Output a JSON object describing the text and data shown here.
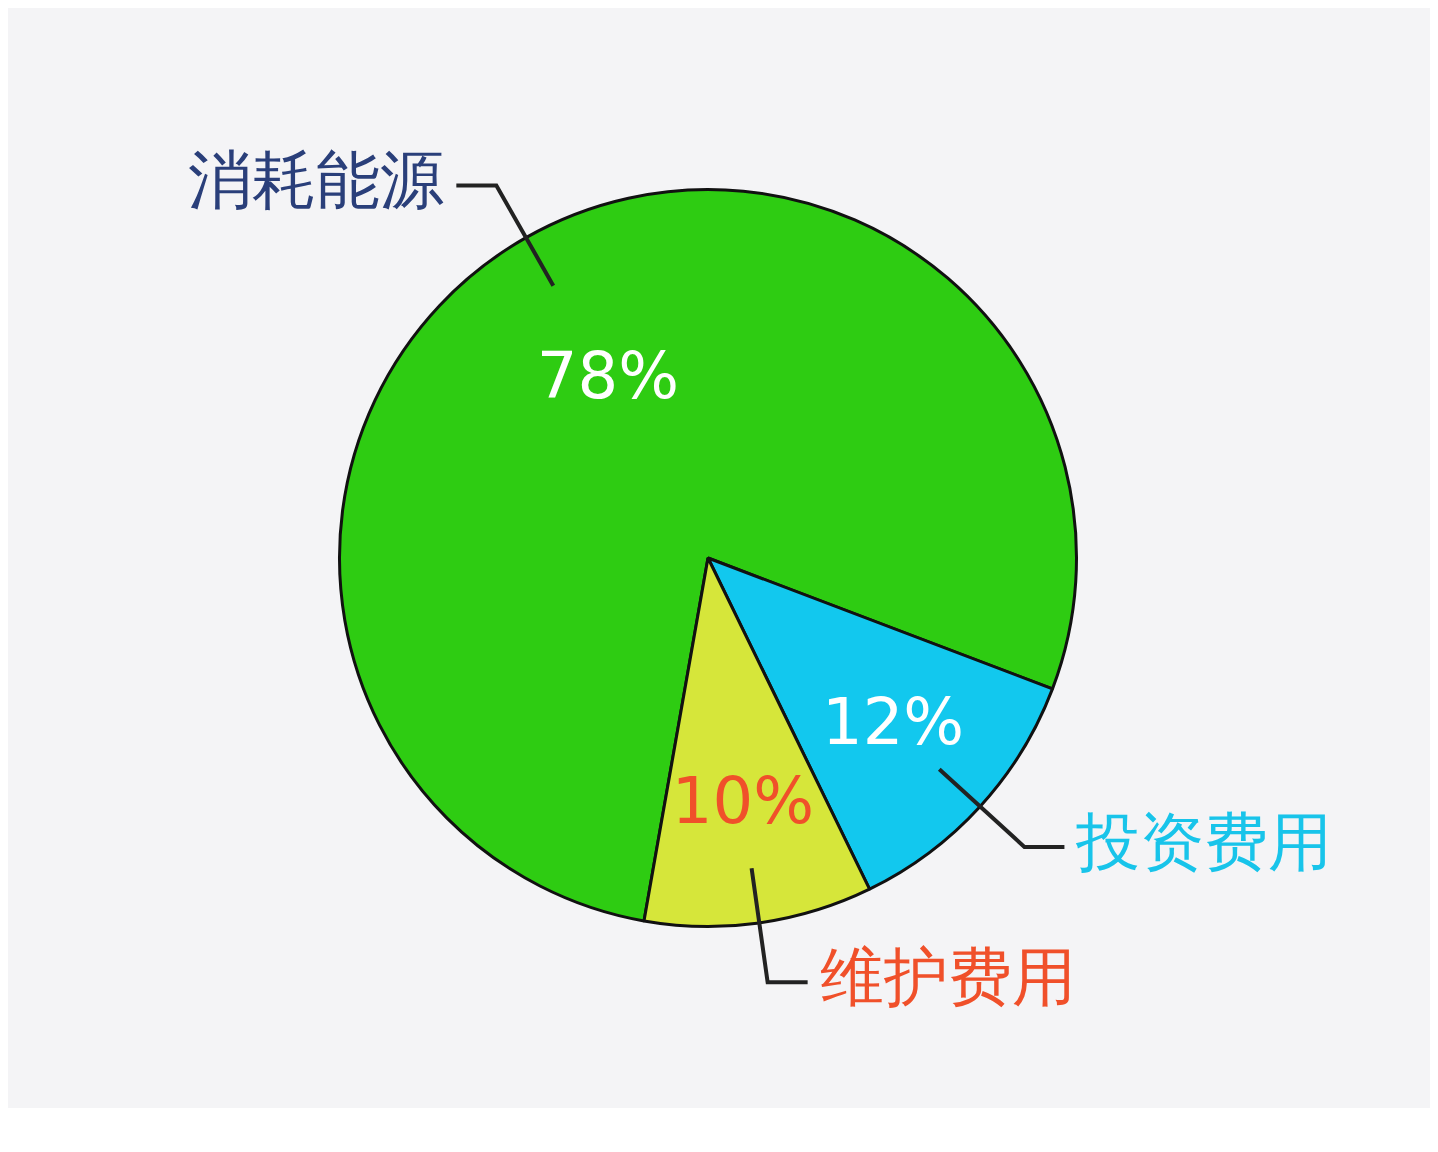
{
  "chart_data": {
    "type": "pie",
    "categories": [
      "消耗能源",
      "投资费用",
      "维护费用"
    ],
    "values": [
      78,
      12,
      10
    ],
    "colors": [
      "#2ecc12",
      "#12c8ee",
      "#d6e63a"
    ],
    "value_labels": [
      "78%",
      "12%",
      "10%"
    ],
    "legend": false
  }
}
